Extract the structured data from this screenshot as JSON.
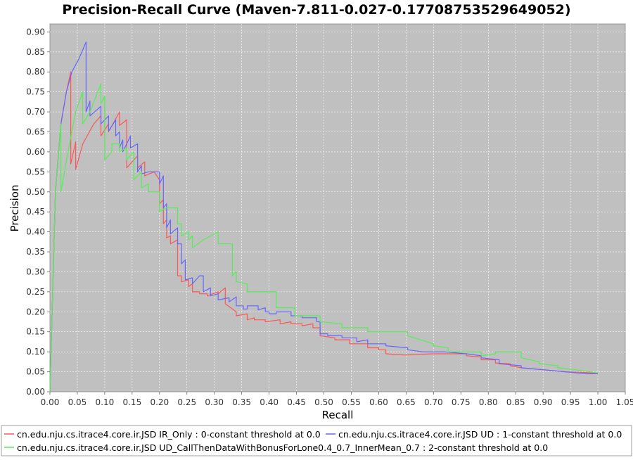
{
  "chart_data": {
    "type": "line",
    "title": "Precision-Recall Curve (Maven-7.811-0.027-0.17708753529649052)",
    "xlabel": "Recall",
    "ylabel": "Precision",
    "xlim": [
      0,
      1.05
    ],
    "ylim": [
      0,
      0.92
    ],
    "x_ticks": [
      "0.00",
      "0.05",
      "0.10",
      "0.15",
      "0.20",
      "0.25",
      "0.30",
      "0.35",
      "0.40",
      "0.45",
      "0.50",
      "0.55",
      "0.60",
      "0.65",
      "0.70",
      "0.75",
      "0.80",
      "0.85",
      "0.90",
      "0.95",
      "1.00",
      "1.05"
    ],
    "y_ticks": [
      "0.00",
      "0.05",
      "0.10",
      "0.15",
      "0.20",
      "0.25",
      "0.30",
      "0.35",
      "0.40",
      "0.45",
      "0.50",
      "0.55",
      "0.60",
      "0.65",
      "0.70",
      "0.75",
      "0.80",
      "0.85",
      "0.90"
    ],
    "grid": true,
    "legend_position": "bottom",
    "series": [
      {
        "name": "cn.edu.nju.cs.itrace4.core.ir.JSD IR_Only : 0-constant threshold at 0.0",
        "color": "#ff5555",
        "points": [
          [
            0.0,
            0.0
          ],
          [
            0.01,
            0.5
          ],
          [
            0.02,
            0.67
          ],
          [
            0.03,
            0.75
          ],
          [
            0.038,
            0.8
          ],
          [
            0.038,
            0.57
          ],
          [
            0.047,
            0.625
          ],
          [
            0.047,
            0.556
          ],
          [
            0.06,
            0.62
          ],
          [
            0.08,
            0.67
          ],
          [
            0.093,
            0.69
          ],
          [
            0.093,
            0.64
          ],
          [
            0.107,
            0.67
          ],
          [
            0.107,
            0.65
          ],
          [
            0.127,
            0.7
          ],
          [
            0.127,
            0.666
          ],
          [
            0.14,
            0.68
          ],
          [
            0.14,
            0.56
          ],
          [
            0.16,
            0.59
          ],
          [
            0.16,
            0.56
          ],
          [
            0.173,
            0.575
          ],
          [
            0.173,
            0.54
          ],
          [
            0.19,
            0.55
          ],
          [
            0.2,
            0.53
          ],
          [
            0.2,
            0.47
          ],
          [
            0.207,
            0.48
          ],
          [
            0.207,
            0.42
          ],
          [
            0.213,
            0.43
          ],
          [
            0.213,
            0.385
          ],
          [
            0.22,
            0.39
          ],
          [
            0.22,
            0.37
          ],
          [
            0.233,
            0.38
          ],
          [
            0.233,
            0.29
          ],
          [
            0.24,
            0.29
          ],
          [
            0.24,
            0.275
          ],
          [
            0.253,
            0.28
          ],
          [
            0.253,
            0.263
          ],
          [
            0.26,
            0.27
          ],
          [
            0.26,
            0.25
          ],
          [
            0.273,
            0.25
          ],
          [
            0.273,
            0.245
          ],
          [
            0.287,
            0.245
          ],
          [
            0.287,
            0.24
          ],
          [
            0.307,
            0.25
          ],
          [
            0.307,
            0.245
          ],
          [
            0.32,
            0.26
          ],
          [
            0.32,
            0.22
          ],
          [
            0.34,
            0.2
          ],
          [
            0.34,
            0.19
          ],
          [
            0.36,
            0.195
          ],
          [
            0.36,
            0.18
          ],
          [
            0.373,
            0.185
          ],
          [
            0.373,
            0.18
          ],
          [
            0.393,
            0.18
          ],
          [
            0.393,
            0.175
          ],
          [
            0.42,
            0.18
          ],
          [
            0.42,
            0.17
          ],
          [
            0.44,
            0.175
          ],
          [
            0.44,
            0.17
          ],
          [
            0.46,
            0.17
          ],
          [
            0.46,
            0.165
          ],
          [
            0.48,
            0.17
          ],
          [
            0.48,
            0.16
          ],
          [
            0.493,
            0.16
          ],
          [
            0.493,
            0.14
          ],
          [
            0.52,
            0.135
          ],
          [
            0.52,
            0.13
          ],
          [
            0.547,
            0.13
          ],
          [
            0.547,
            0.12
          ],
          [
            0.58,
            0.12
          ],
          [
            0.58,
            0.11
          ],
          [
            0.6,
            0.11
          ],
          [
            0.6,
            0.105
          ],
          [
            0.613,
            0.105
          ],
          [
            0.613,
            0.095
          ],
          [
            0.647,
            0.092
          ],
          [
            0.7,
            0.095
          ],
          [
            0.76,
            0.095
          ],
          [
            0.76,
            0.09
          ],
          [
            0.787,
            0.087
          ],
          [
            0.787,
            0.08
          ],
          [
            0.813,
            0.08
          ],
          [
            0.813,
            0.072
          ],
          [
            0.84,
            0.07
          ],
          [
            0.84,
            0.065
          ],
          [
            0.86,
            0.06
          ],
          [
            0.9,
            0.055
          ],
          [
            0.94,
            0.05
          ],
          [
            0.98,
            0.048
          ],
          [
            1.0,
            0.046
          ]
        ]
      },
      {
        "name": "cn.edu.nju.cs.itrace4.core.ir.JSD UD : 1-constant threshold at 0.0",
        "color": "#6666ff",
        "points": [
          [
            0.0,
            0.0
          ],
          [
            0.01,
            0.5
          ],
          [
            0.02,
            0.67
          ],
          [
            0.03,
            0.75
          ],
          [
            0.04,
            0.8
          ],
          [
            0.053,
            0.833
          ],
          [
            0.066,
            0.875
          ],
          [
            0.066,
            0.7
          ],
          [
            0.073,
            0.727
          ],
          [
            0.073,
            0.69
          ],
          [
            0.093,
            0.714
          ],
          [
            0.093,
            0.67
          ],
          [
            0.107,
            0.69
          ],
          [
            0.107,
            0.652
          ],
          [
            0.12,
            0.68
          ],
          [
            0.12,
            0.64
          ],
          [
            0.127,
            0.65
          ],
          [
            0.127,
            0.61
          ],
          [
            0.133,
            0.63
          ],
          [
            0.133,
            0.6
          ],
          [
            0.147,
            0.64
          ],
          [
            0.147,
            0.61
          ],
          [
            0.16,
            0.62
          ],
          [
            0.16,
            0.55
          ],
          [
            0.167,
            0.565
          ],
          [
            0.167,
            0.545
          ],
          [
            0.18,
            0.55
          ],
          [
            0.2,
            0.55
          ],
          [
            0.2,
            0.52
          ],
          [
            0.207,
            0.54
          ],
          [
            0.207,
            0.46
          ],
          [
            0.213,
            0.47
          ],
          [
            0.213,
            0.41
          ],
          [
            0.22,
            0.43
          ],
          [
            0.22,
            0.395
          ],
          [
            0.233,
            0.41
          ],
          [
            0.233,
            0.37
          ],
          [
            0.24,
            0.37
          ],
          [
            0.24,
            0.32
          ],
          [
            0.247,
            0.33
          ],
          [
            0.247,
            0.28
          ],
          [
            0.26,
            0.285
          ],
          [
            0.26,
            0.27
          ],
          [
            0.273,
            0.29
          ],
          [
            0.28,
            0.29
          ],
          [
            0.28,
            0.25
          ],
          [
            0.293,
            0.26
          ],
          [
            0.293,
            0.24
          ],
          [
            0.307,
            0.245
          ],
          [
            0.307,
            0.23
          ],
          [
            0.327,
            0.235
          ],
          [
            0.327,
            0.225
          ],
          [
            0.34,
            0.237
          ],
          [
            0.34,
            0.215
          ],
          [
            0.353,
            0.215
          ],
          [
            0.353,
            0.207
          ],
          [
            0.36,
            0.207
          ],
          [
            0.36,
            0.215
          ],
          [
            0.38,
            0.215
          ],
          [
            0.38,
            0.205
          ],
          [
            0.393,
            0.21
          ],
          [
            0.393,
            0.2
          ],
          [
            0.4,
            0.2
          ],
          [
            0.4,
            0.195
          ],
          [
            0.413,
            0.195
          ],
          [
            0.413,
            0.2
          ],
          [
            0.44,
            0.2
          ],
          [
            0.44,
            0.19
          ],
          [
            0.46,
            0.19
          ],
          [
            0.46,
            0.185
          ],
          [
            0.487,
            0.185
          ],
          [
            0.487,
            0.175
          ],
          [
            0.493,
            0.175
          ],
          [
            0.493,
            0.145
          ],
          [
            0.507,
            0.145
          ],
          [
            0.507,
            0.14
          ],
          [
            0.533,
            0.14
          ],
          [
            0.533,
            0.135
          ],
          [
            0.56,
            0.135
          ],
          [
            0.56,
            0.125
          ],
          [
            0.58,
            0.13
          ],
          [
            0.58,
            0.12
          ],
          [
            0.613,
            0.12
          ],
          [
            0.613,
            0.115
          ],
          [
            0.653,
            0.11
          ],
          [
            0.653,
            0.105
          ],
          [
            0.68,
            0.1
          ],
          [
            0.72,
            0.1
          ],
          [
            0.76,
            0.095
          ],
          [
            0.787,
            0.09
          ],
          [
            0.787,
            0.085
          ],
          [
            0.82,
            0.08
          ],
          [
            0.82,
            0.07
          ],
          [
            0.86,
            0.065
          ],
          [
            0.86,
            0.06
          ],
          [
            0.9,
            0.055
          ],
          [
            0.94,
            0.05
          ],
          [
            0.98,
            0.045
          ],
          [
            1.0,
            0.045
          ]
        ]
      },
      {
        "name": "cn.edu.nju.cs.itrace4.core.ir.JSD UD_CallThenDataWithBonusForLone0.4_0.7_InnerMean_0.7 : 2-constant threshold at 0.0",
        "color": "#55ee55",
        "points": [
          [
            0.0,
            0.0
          ],
          [
            0.01,
            0.5
          ],
          [
            0.02,
            0.67
          ],
          [
            0.02,
            0.5
          ],
          [
            0.033,
            0.6
          ],
          [
            0.033,
            0.6
          ],
          [
            0.047,
            0.7
          ],
          [
            0.06,
            0.75
          ],
          [
            0.06,
            0.67
          ],
          [
            0.073,
            0.7
          ],
          [
            0.093,
            0.77
          ],
          [
            0.093,
            0.72
          ],
          [
            0.1,
            0.74
          ],
          [
            0.1,
            0.58
          ],
          [
            0.113,
            0.6
          ],
          [
            0.113,
            0.62
          ],
          [
            0.127,
            0.62
          ],
          [
            0.127,
            0.6
          ],
          [
            0.14,
            0.61
          ],
          [
            0.14,
            0.58
          ],
          [
            0.153,
            0.6
          ],
          [
            0.153,
            0.53
          ],
          [
            0.167,
            0.55
          ],
          [
            0.167,
            0.51
          ],
          [
            0.18,
            0.52
          ],
          [
            0.18,
            0.5
          ],
          [
            0.2,
            0.5
          ],
          [
            0.2,
            0.45
          ],
          [
            0.213,
            0.46
          ],
          [
            0.233,
            0.46
          ],
          [
            0.233,
            0.42
          ],
          [
            0.24,
            0.42
          ],
          [
            0.24,
            0.39
          ],
          [
            0.253,
            0.4
          ],
          [
            0.253,
            0.38
          ],
          [
            0.26,
            0.39
          ],
          [
            0.26,
            0.36
          ],
          [
            0.28,
            0.38
          ],
          [
            0.307,
            0.4
          ],
          [
            0.307,
            0.37
          ],
          [
            0.333,
            0.37
          ],
          [
            0.333,
            0.29
          ],
          [
            0.34,
            0.3
          ],
          [
            0.34,
            0.275
          ],
          [
            0.36,
            0.27
          ],
          [
            0.36,
            0.25
          ],
          [
            0.413,
            0.25
          ],
          [
            0.413,
            0.21
          ],
          [
            0.447,
            0.21
          ],
          [
            0.447,
            0.19
          ],
          [
            0.493,
            0.19
          ],
          [
            0.493,
            0.175
          ],
          [
            0.533,
            0.17
          ],
          [
            0.533,
            0.16
          ],
          [
            0.58,
            0.16
          ],
          [
            0.58,
            0.15
          ],
          [
            0.653,
            0.15
          ],
          [
            0.653,
            0.14
          ],
          [
            0.7,
            0.12
          ],
          [
            0.7,
            0.115
          ],
          [
            0.727,
            0.11
          ],
          [
            0.727,
            0.1
          ],
          [
            0.787,
            0.1
          ],
          [
            0.787,
            0.09
          ],
          [
            0.813,
            0.095
          ],
          [
            0.813,
            0.1
          ],
          [
            0.86,
            0.1
          ],
          [
            0.86,
            0.085
          ],
          [
            0.893,
            0.075
          ],
          [
            0.893,
            0.07
          ],
          [
            0.927,
            0.065
          ],
          [
            0.927,
            0.06
          ],
          [
            0.96,
            0.055
          ],
          [
            1.0,
            0.047
          ]
        ]
      }
    ]
  }
}
